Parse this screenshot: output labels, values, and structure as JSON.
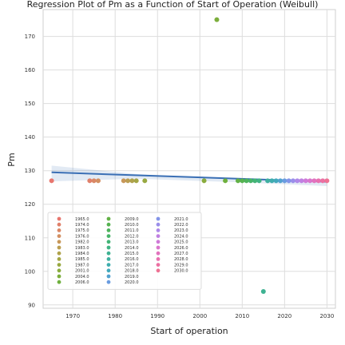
{
  "chart_data": {
    "type": "scatter",
    "title": "Regression Plot of Pm as a Function of Start of Operation (Weibull)",
    "xlabel": "Start of operation",
    "ylabel": "Pm",
    "xlim": [
      1963,
      2032
    ],
    "ylim": [
      89,
      178
    ],
    "xticks": [
      1970,
      1980,
      1990,
      2000,
      2010,
      2020,
      2030
    ],
    "yticks": [
      90,
      100,
      110,
      120,
      130,
      140,
      150,
      160,
      170
    ],
    "grid": true,
    "legend_position": "lower-left",
    "legend_columns": 3,
    "regression": {
      "color": "#3a6fb5",
      "line": [
        [
          1965,
          129.5
        ],
        [
          2030,
          126.7
        ]
      ],
      "ci_upper": [
        [
          1965,
          131.5
        ],
        [
          1985,
          129.0
        ],
        [
          2010,
          127.3
        ],
        [
          2030,
          127.6
        ]
      ],
      "ci_lower": [
        [
          1965,
          126.8
        ],
        [
          1985,
          127.6
        ],
        [
          2010,
          126.5
        ],
        [
          2030,
          125.4
        ]
      ]
    },
    "series": [
      {
        "name": "1965.0",
        "color": "#e8766e",
        "x": [
          1965
        ],
        "y": [
          127
        ]
      },
      {
        "name": "1974.0",
        "color": "#e0806a",
        "x": [
          1974
        ],
        "y": [
          127
        ]
      },
      {
        "name": "1975.0",
        "color": "#da8866",
        "x": [
          1975
        ],
        "y": [
          127
        ]
      },
      {
        "name": "1976.0",
        "color": "#d39062",
        "x": [
          1976
        ],
        "y": [
          127
        ]
      },
      {
        "name": "1982.0",
        "color": "#c8985a",
        "x": [
          1982
        ],
        "y": [
          127
        ]
      },
      {
        "name": "1983.0",
        "color": "#bb9e52",
        "x": [
          1983
        ],
        "y": [
          127
        ]
      },
      {
        "name": "1984.0",
        "color": "#b0a24c",
        "x": [
          1984
        ],
        "y": [
          127
        ]
      },
      {
        "name": "1985.0",
        "color": "#a4a646",
        "x": [
          1985
        ],
        "y": [
          127
        ]
      },
      {
        "name": "1987.0",
        "color": "#98a942",
        "x": [
          1987
        ],
        "y": [
          127
        ]
      },
      {
        "name": "2001.0",
        "color": "#8aac3e",
        "x": [
          2001
        ],
        "y": [
          127
        ]
      },
      {
        "name": "2004.0",
        "color": "#7cae3c",
        "x": [
          2004
        ],
        "y": [
          175
        ]
      },
      {
        "name": "2006.0",
        "color": "#6fb03e",
        "x": [
          2006
        ],
        "y": [
          127
        ]
      },
      {
        "name": "2009.0",
        "color": "#62b146",
        "x": [
          2009
        ],
        "y": [
          127
        ]
      },
      {
        "name": "2010.0",
        "color": "#56b250",
        "x": [
          2010
        ],
        "y": [
          127
        ]
      },
      {
        "name": "2011.0",
        "color": "#4db35c",
        "x": [
          2011
        ],
        "y": [
          127
        ]
      },
      {
        "name": "2012.0",
        "color": "#47b469",
        "x": [
          2012
        ],
        "y": [
          127
        ]
      },
      {
        "name": "2013.0",
        "color": "#43b476",
        "x": [
          2013
        ],
        "y": [
          127
        ]
      },
      {
        "name": "2014.0",
        "color": "#40b384",
        "x": [
          2014
        ],
        "y": [
          127
        ]
      },
      {
        "name": "2015.0",
        "color": "#3eb292",
        "x": [
          2015
        ],
        "y": [
          94
        ]
      },
      {
        "name": "2016.0",
        "color": "#3eb0a0",
        "x": [
          2016
        ],
        "y": [
          127
        ]
      },
      {
        "name": "2017.0",
        "color": "#3fadae",
        "x": [
          2017
        ],
        "y": [
          127
        ]
      },
      {
        "name": "2018.0",
        "color": "#42a9bc",
        "x": [
          2018
        ],
        "y": [
          127
        ]
      },
      {
        "name": "2019.0",
        "color": "#52a2cf",
        "x": [
          2019
        ],
        "y": [
          127
        ]
      },
      {
        "name": "2020.0",
        "color": "#6a9ce0",
        "x": [
          2020
        ],
        "y": [
          127
        ]
      },
      {
        "name": "2021.0",
        "color": "#8394e8",
        "x": [
          2021
        ],
        "y": [
          127
        ]
      },
      {
        "name": "2022.0",
        "color": "#9a8eea",
        "x": [
          2022
        ],
        "y": [
          127
        ]
      },
      {
        "name": "2023.0",
        "color": "#ae88e8",
        "x": [
          2023
        ],
        "y": [
          127
        ]
      },
      {
        "name": "2024.0",
        "color": "#c080e2",
        "x": [
          2024
        ],
        "y": [
          127
        ]
      },
      {
        "name": "2025.0",
        "color": "#cf7ad8",
        "x": [
          2025
        ],
        "y": [
          127
        ]
      },
      {
        "name": "2026.0",
        "color": "#da76cc",
        "x": [
          2026
        ],
        "y": [
          127
        ]
      },
      {
        "name": "2027.0",
        "color": "#e272be",
        "x": [
          2027
        ],
        "y": [
          127
        ]
      },
      {
        "name": "2028.0",
        "color": "#e870b0",
        "x": [
          2028
        ],
        "y": [
          127
        ]
      },
      {
        "name": "2029.0",
        "color": "#ec70a2",
        "x": [
          2029
        ],
        "y": [
          127
        ]
      },
      {
        "name": "2030.0",
        "color": "#ee7294",
        "x": [
          2030
        ],
        "y": [
          127
        ]
      }
    ]
  }
}
